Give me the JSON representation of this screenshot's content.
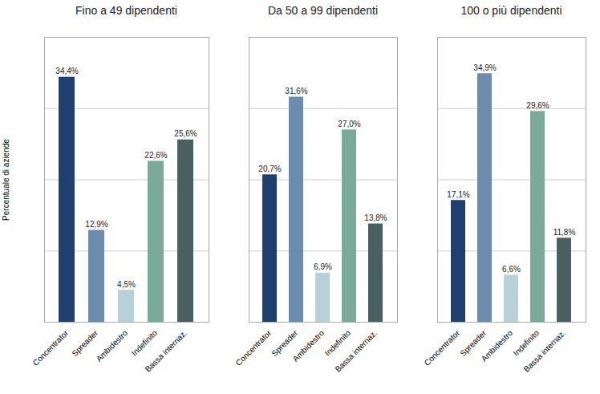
{
  "chart_data": [
    {
      "type": "bar",
      "title": "Fino a 49 dipendenti",
      "categories": [
        "Concentrator",
        "Spreader",
        "Ambidestro",
        "Indefinito",
        "Bassa internaz."
      ],
      "values": [
        34.4,
        12.9,
        4.5,
        22.6,
        25.6
      ],
      "value_labels": [
        "34,4%",
        "12,9%",
        "4,5%",
        "22,6%",
        "25,6%"
      ],
      "colors": [
        "#1f3f6e",
        "#6b8cae",
        "#b8d0d8",
        "#7aaa9a",
        "#4a6060"
      ],
      "ylabel": "Percentuale di aziende",
      "ylim": [
        0,
        40
      ],
      "yticks": [
        10,
        20,
        30,
        40
      ],
      "grid": true,
      "data_labels": true,
      "tick_labels": "x"
    },
    {
      "type": "bar",
      "title": "Da 50 a 99 dipendenti",
      "categories": [
        "Concentrator",
        "Spreader",
        "Ambidestro",
        "Indefinito",
        "Bassa internaz."
      ],
      "values": [
        20.7,
        31.6,
        6.9,
        27.0,
        13.8
      ],
      "value_labels": [
        "20,7%",
        "31,6%",
        "6,9%",
        "27,0%",
        "13,8%"
      ],
      "colors": [
        "#1f3f6e",
        "#6b8cae",
        "#b8d0d8",
        "#7aaa9a",
        "#4a6060"
      ],
      "ylim": [
        0,
        40
      ],
      "yticks": [
        10,
        20,
        30,
        40
      ],
      "grid": true,
      "data_labels": true,
      "tick_labels": "x"
    },
    {
      "type": "bar",
      "title": "100 o più dipendenti",
      "categories": [
        "Concentrator",
        "Spreader",
        "Ambidestro",
        "Indefinito",
        "Bassa internaz."
      ],
      "values": [
        17.1,
        34.9,
        6.6,
        29.6,
        11.8
      ],
      "value_labels": [
        "17,1%",
        "34,9%",
        "6,6%",
        "29,6%",
        "11,8%"
      ],
      "colors": [
        "#1f3f6e",
        "#6b8cae",
        "#b8d0d8",
        "#7aaa9a",
        "#4a6060"
      ],
      "ylim": [
        0,
        40
      ],
      "yticks": [
        10,
        20,
        30,
        40
      ],
      "grid": true,
      "data_labels": true,
      "tick_labels": "x"
    }
  ]
}
